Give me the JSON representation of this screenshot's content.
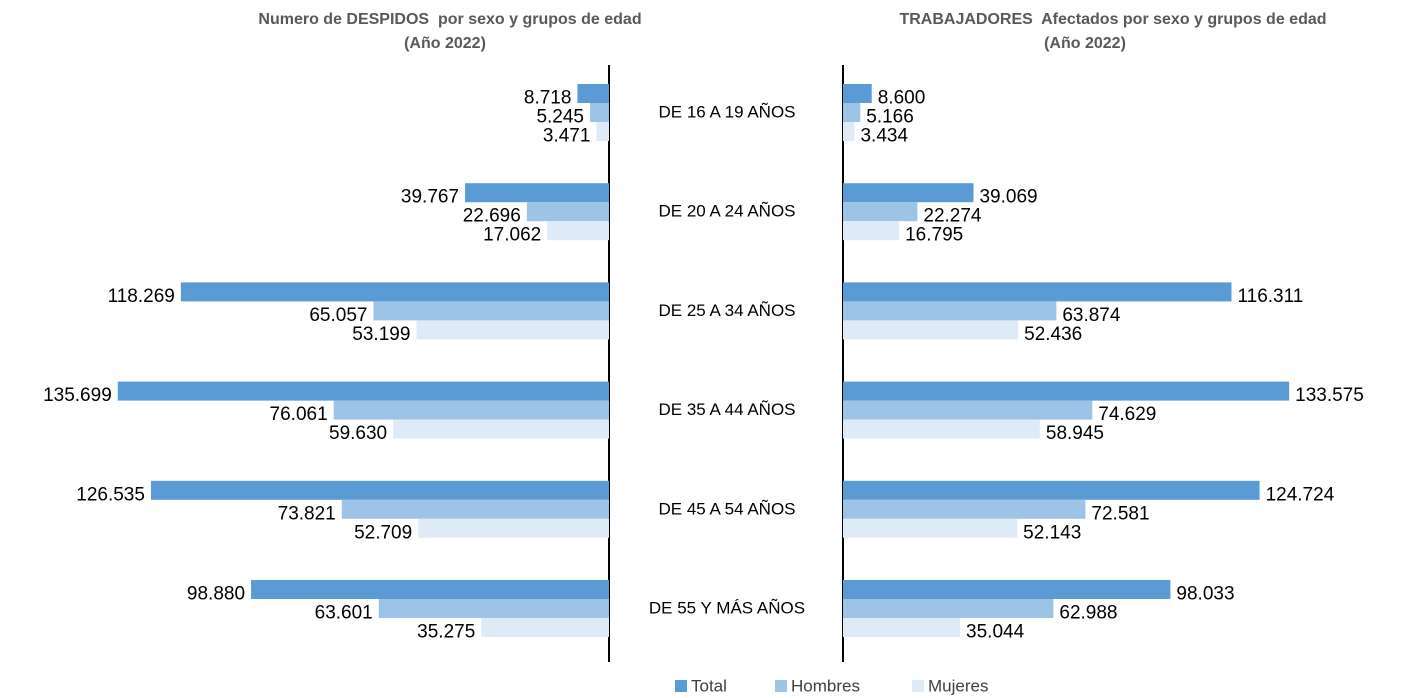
{
  "chart_data": [
    {
      "type": "bar",
      "title": "Numero de DESPIDOS  por sexo y grupos de edad",
      "subtitle": "(Año 2022)",
      "categories": [
        "DE 16 A 19 AÑOS",
        "DE 20 A 24 AÑOS",
        "DE 25 A 34 AÑOS",
        "DE 35 A 44 AÑOS",
        "DE 45 A 54 AÑOS",
        "DE 55 Y MÁS AÑOS"
      ],
      "xlim": [
        0,
        150000
      ],
      "series": [
        {
          "name": "Total",
          "color": "#5b9bd5",
          "values": [
            8718,
            39767,
            118269,
            135699,
            126535,
            98880
          ],
          "value_labels": [
            "8.718",
            "39.767",
            "118.269",
            "135.699",
            "126.535",
            "98.880"
          ]
        },
        {
          "name": "Hombres",
          "color": "#9dc3e6",
          "values": [
            5245,
            22696,
            65057,
            76061,
            73821,
            63601
          ],
          "value_labels": [
            "5.245",
            "22.696",
            "65.057",
            "76.061",
            "73.821",
            "63.601"
          ]
        },
        {
          "name": "Mujeres",
          "color": "#deebf7",
          "values": [
            3471,
            17062,
            53199,
            59630,
            52709,
            35275
          ],
          "value_labels": [
            "3.471",
            "17.062",
            "53.199",
            "59.630",
            "52.709",
            "35.275"
          ]
        }
      ]
    },
    {
      "type": "bar",
      "title": "TRABAJADORES  Afectados por sexo y grupos de edad",
      "subtitle": "(Año 2022)",
      "xlim": [
        0,
        150000
      ],
      "series": [
        {
          "color": "#5b9bd5",
          "values": [
            8600,
            39069,
            116311,
            133575,
            124724,
            98033
          ],
          "value_labels": [
            "8.600",
            "39.069",
            "116.311",
            "133.575",
            "124.724",
            "98.033"
          ]
        },
        {
          "color": "#9dc3e6",
          "values": [
            5166,
            22274,
            63874,
            74629,
            72581,
            62988
          ],
          "value_labels": [
            "5.166",
            "22.274",
            "63.874",
            "74.629",
            "72.581",
            "62.988"
          ]
        },
        {
          "color": "#deebf7",
          "values": [
            3434,
            16795,
            52436,
            58945,
            52143,
            35044
          ],
          "value_labels": [
            "3.434",
            "16.795",
            "52.436",
            "58.945",
            "52.143",
            "35.044"
          ]
        }
      ]
    }
  ]
}
